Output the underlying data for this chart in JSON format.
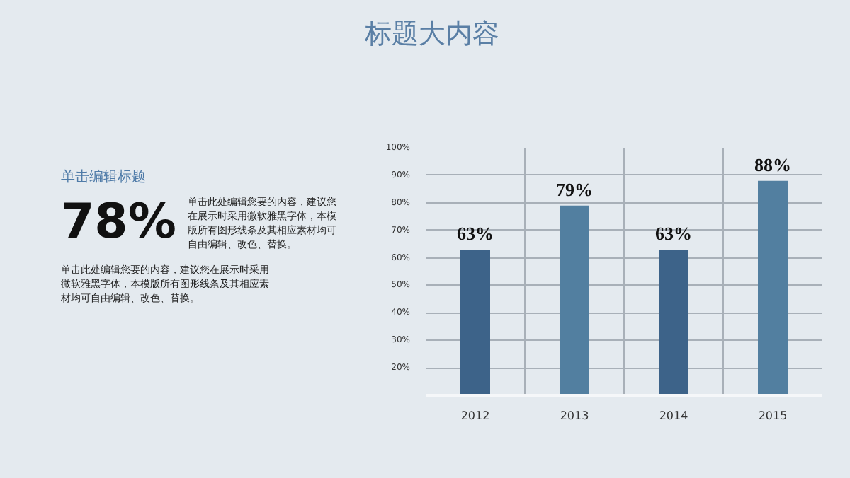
{
  "chart_data": {
    "type": "bar",
    "title": "标题大内容",
    "categories": [
      "2012",
      "2013",
      "2014",
      "2015"
    ],
    "values": [
      63,
      79,
      63,
      88
    ],
    "colors": [
      "#3d6389",
      "#527fa0",
      "#3d6389",
      "#527fa0"
    ],
    "data_labels": true,
    "value_labels": [
      "63%",
      "79%",
      "63%",
      "88%"
    ],
    "ylim": [
      10,
      100
    ],
    "yticks": [
      {
        "value": 20,
        "label": "20%"
      },
      {
        "value": 30,
        "label": "30%"
      },
      {
        "value": 40,
        "label": "40%"
      },
      {
        "value": 50,
        "label": "50%"
      },
      {
        "value": 60,
        "label": "60%"
      },
      {
        "value": 70,
        "label": "70%"
      },
      {
        "value": 80,
        "label": "80%"
      },
      {
        "value": 90,
        "label": "90%"
      },
      {
        "value": 100,
        "label": "100%"
      }
    ],
    "grid": true,
    "annotations": [
      "单击编辑标题",
      "78%",
      "单击此处编辑您要的内容，建议您在展示时采用微软雅黑字体，本模版所有图形线条及其相应素材均可自由编辑、改色、替换。",
      "单击此处编辑您要的内容，建议您在展示时采用微软雅黑字体，本模版所有图形线条及其相应素材均可自由编辑、改色、替换。"
    ]
  }
}
